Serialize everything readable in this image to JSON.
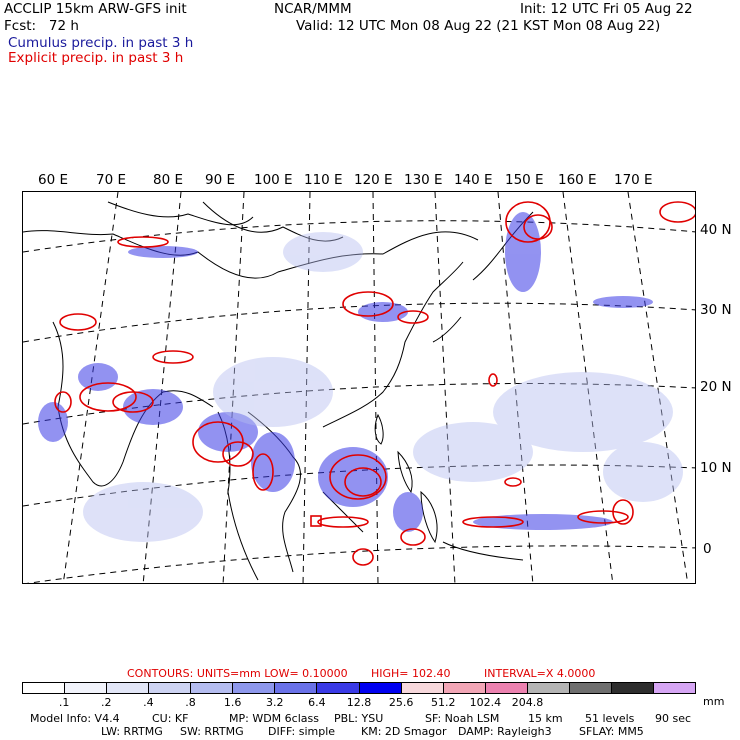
{
  "header": {
    "title_left": "ACCLIP 15km ARW-GFS init",
    "forecast": "Fcst:   72 h",
    "center": "NCAR/MMM",
    "init": "Init: 12 UTC Fri 05 Aug 22",
    "valid": "Valid: 12 UTC Mon 08 Aug 22 (21 KST Mon 08 Aug 22)",
    "legend_cumulus": "Cumulus precip. in past 3 h",
    "legend_explicit": "Explicit precip. in past 3 h"
  },
  "colors": {
    "cumulus": "#2b2bd6",
    "explicit": "#e00000",
    "coast": "#000000"
  },
  "map": {
    "lon_labels": [
      "60 E",
      "70 E",
      "80 E",
      "90 E",
      "100 E",
      "110 E",
      "120 E",
      "130 E",
      "140 E",
      "150 E",
      "160 E",
      "170 E"
    ],
    "lat_labels": [
      "40 N",
      "30 N",
      "20 N",
      "10 N",
      "0"
    ]
  },
  "contours": {
    "label": "CONTOURS:  UNITS=mm  LOW= 0.10000",
    "high": "HIGH=  102.40",
    "interval": "INTERVAL=X  4.0000"
  },
  "colorbar": {
    "colors": [
      "#ffffff",
      "#f1f3fb",
      "#e2e6f7",
      "#cdd3f2",
      "#b5bdf0",
      "#8e98ec",
      "#6a72e8",
      "#3a3ae6",
      "#0000f0",
      "#f7d8dc",
      "#f2a6b6",
      "#ec82b0",
      "#b4b4b4",
      "#6e6e6e",
      "#2e2e2e",
      "#d6a6f4"
    ],
    "labels": [
      ".1",
      ".2",
      ".4",
      ".8",
      "1.6",
      "3.2",
      "6.4",
      "12.8",
      "25.6",
      "51.2",
      "102.4",
      "204.8"
    ],
    "unit": "mm"
  },
  "footer": {
    "line1": [
      "Model Info: V4.4",
      "CU: KF",
      "MP: WDM 6class",
      "PBL: YSU",
      "SF: Noah LSM",
      "15 km",
      "51 levels",
      "90 sec"
    ],
    "line2": [
      "LW: RRTMG",
      "SW: RRTMG",
      "DIFF: simple",
      "KM: 2D Smagor",
      "DAMP: Rayleigh3",
      "SFLAY: MM5"
    ]
  }
}
